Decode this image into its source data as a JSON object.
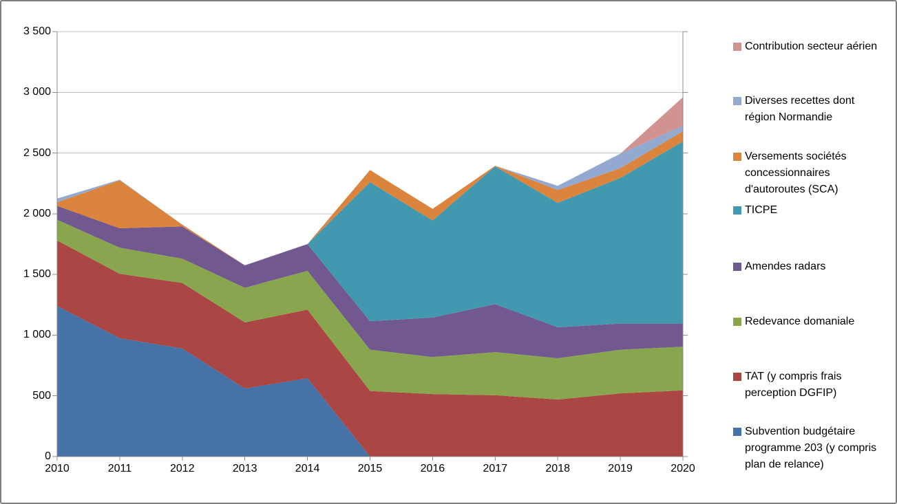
{
  "chart": {
    "background": "#FFFFFF",
    "border_color": "#7F7F7F",
    "grid_color": "#C4C4C4",
    "axis_color": "#8C8C8C",
    "text_color": "#000000"
  },
  "chart_data": {
    "type": "area",
    "stacked": true,
    "title": "",
    "xlabel": "",
    "ylabel": "",
    "grid": true,
    "legend_position": "right",
    "x": [
      "2010",
      "2011",
      "2012",
      "2013",
      "2014",
      "2015",
      "2016",
      "2017",
      "2018",
      "2019",
      "2020"
    ],
    "y_axis": {
      "min": 0,
      "max": 3500,
      "step": 500,
      "tick_labels": [
        "0",
        "500",
        "1 000",
        "1 500",
        "2 000",
        "2 500",
        "3 000",
        "3 500"
      ]
    },
    "series": [
      {
        "key": "subvention-budgetaire",
        "name": "Subvention budgétaire programme 203 (y compris plan de relance)",
        "color": "#4572A7",
        "values": [
          1240,
          975,
          890,
          560,
          645,
          0,
          0,
          0,
          0,
          0,
          0
        ]
      },
      {
        "key": "tat",
        "name": "TAT (y compris frais perception DGFIP)",
        "color": "#AA4643",
        "values": [
          540,
          530,
          540,
          545,
          565,
          540,
          515,
          505,
          470,
          520,
          545
        ]
      },
      {
        "key": "redevance-domaniale",
        "name": "Redevance domaniale",
        "color": "#89A54E",
        "values": [
          170,
          215,
          200,
          285,
          320,
          340,
          305,
          355,
          340,
          360,
          360
        ]
      },
      {
        "key": "amendes-radars",
        "name": "Amendes radars",
        "color": "#71588F",
        "values": [
          115,
          160,
          265,
          185,
          220,
          235,
          325,
          395,
          255,
          215,
          190
        ]
      },
      {
        "key": "ticpe",
        "name": "TICPE",
        "color": "#4198AF",
        "values": [
          0,
          0,
          0,
          0,
          0,
          1145,
          800,
          1135,
          1025,
          1200,
          1500
        ]
      },
      {
        "key": "versements-sca",
        "name": "Versements sociétés concessionnaires d'autoroutes (SCA)",
        "color": "#DB843D",
        "values": [
          30,
          395,
          15,
          0,
          0,
          100,
          95,
          5,
          105,
          80,
          85
        ]
      },
      {
        "key": "diverses-recettes",
        "name": "Diverses recettes dont région Normandie",
        "color": "#93A9CF",
        "values": [
          30,
          5,
          0,
          0,
          0,
          0,
          0,
          0,
          35,
          120,
          45
        ]
      },
      {
        "key": "contribution-aerien",
        "name": "Contribution secteur aérien",
        "color": "#D19392",
        "values": [
          0,
          0,
          0,
          0,
          0,
          0,
          0,
          0,
          0,
          0,
          235
        ]
      }
    ]
  }
}
